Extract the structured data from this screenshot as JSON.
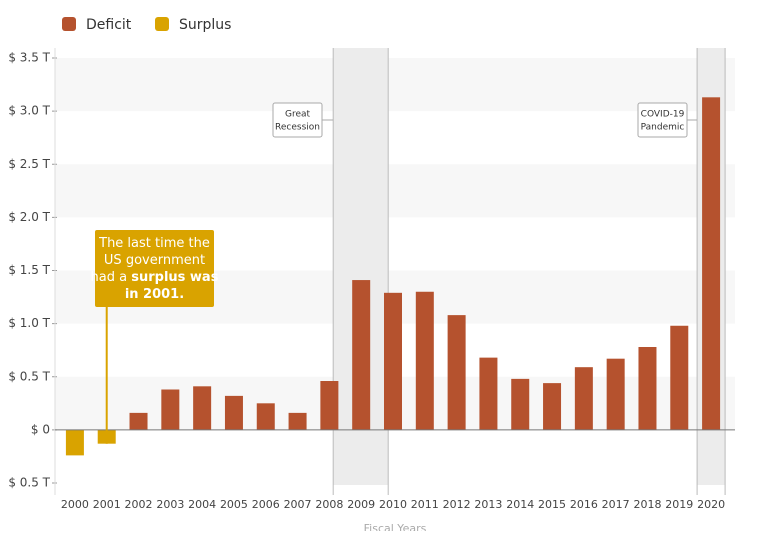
{
  "chart_data": {
    "type": "bar",
    "categories": [
      "2000",
      "2001",
      "2002",
      "2003",
      "2004",
      "2005",
      "2006",
      "2007",
      "2008",
      "2009",
      "2010",
      "2011",
      "2012",
      "2013",
      "2014",
      "2015",
      "2016",
      "2017",
      "2018",
      "2019",
      "2020"
    ],
    "series": [
      {
        "name": "Deficit",
        "color": "#b5522e",
        "values": [
          null,
          null,
          0.16,
          0.38,
          0.41,
          0.32,
          0.25,
          0.16,
          0.46,
          1.41,
          1.29,
          1.3,
          1.08,
          0.68,
          0.48,
          0.44,
          0.59,
          0.67,
          0.78,
          0.98,
          3.13
        ]
      },
      {
        "name": "Surplus",
        "color": "#d9a300",
        "values": [
          -0.24,
          -0.13,
          null,
          null,
          null,
          null,
          null,
          null,
          null,
          null,
          null,
          null,
          null,
          null,
          null,
          null,
          null,
          null,
          null,
          null,
          null
        ]
      }
    ],
    "ylim": [
      -0.5,
      3.5
    ],
    "yticks": [
      {
        "value": -0.5,
        "label": "$ 0.5 T"
      },
      {
        "value": 0,
        "label": "$ 0"
      },
      {
        "value": 0.5,
        "label": "$ 0.5 T"
      },
      {
        "value": 1,
        "label": "$ 1.0 T"
      },
      {
        "value": 1.5,
        "label": "$ 1.5 T"
      },
      {
        "value": 2,
        "label": "$ 2.0 T"
      },
      {
        "value": 2.5,
        "label": "$ 2.5 T"
      },
      {
        "value": 3,
        "label": "$ 3.0 T"
      },
      {
        "value": 3.5,
        "label": "$ 3.5 T"
      }
    ],
    "x_label": "Fiscal Years",
    "annotations": [
      [
        "Great",
        "Recession"
      ],
      [
        "COVID-19",
        "Pandemic"
      ]
    ],
    "callout": [
      [
        {
          "text": "The last time the",
          "bold": false
        }
      ],
      [
        {
          "text": "US government",
          "bold": false
        }
      ],
      [
        {
          "text": "had a ",
          "bold": false
        },
        {
          "text": "surplus was",
          "bold": true
        }
      ],
      [
        {
          "text": "in 2001.",
          "bold": true
        }
      ]
    ]
  }
}
